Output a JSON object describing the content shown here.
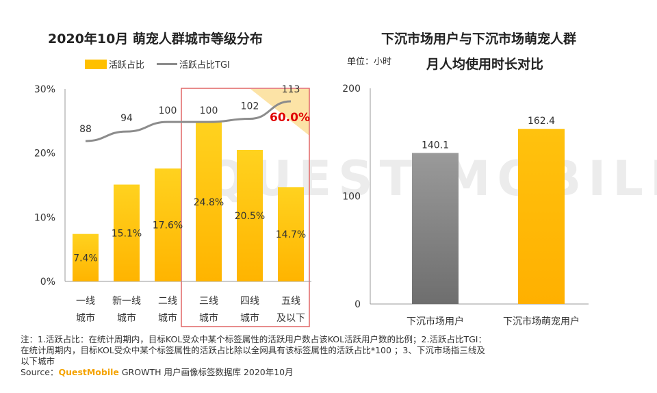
{
  "left_chart": {
    "title": "2020年10月 萌宠人群城市等级分布",
    "legend_bar": "活跃占比",
    "legend_line": "活跃占比TGI"
  },
  "right_chart": {
    "title_line1": "下沉市场用户与下沉市场萌宠人群",
    "title_line2": "月人均使用时长对比",
    "unit": "单位：小时"
  },
  "highlight_value": "60.0%",
  "watermark": "QUEST MOBILE",
  "notes": {
    "line1": "注：1.活跃占比：在统计周期内，目标KOL受众中某个标签属性的活跃用户数占该KOL活跃用户数的比例；2.活跃占比TGI：",
    "line2": "在统计周期内，目标KOL受众中某个标签属性的活跃占比除以全网具有该标签属性的活跃占比*100 ；3、下沉市场指三线及",
    "line3": "以下城市",
    "source_prefix": "Source：",
    "source_brand": "QuestMobile",
    "source_rest": " GROWTH 用户画像标签数据库 2020年10月"
  },
  "colors": {
    "bar_yellow": "#ffc000",
    "bar_gray": "#8c8c8c",
    "tgi_line": "#8c8c8c",
    "highlight_box": "#e06666",
    "highlight_text": "#e00000"
  },
  "chart_data": [
    {
      "type": "bar",
      "categories": [
        [
          "一线",
          "城市"
        ],
        [
          "新一线",
          "城市"
        ],
        [
          "二线",
          "城市"
        ],
        [
          "三线",
          "城市"
        ],
        [
          "四线",
          "城市"
        ],
        [
          "五线",
          "及以下"
        ]
      ],
      "series": [
        {
          "name": "活跃占比",
          "type": "bar",
          "values": [
            7.4,
            15.1,
            17.6,
            24.8,
            20.5,
            14.7
          ],
          "labels": [
            "7.4%",
            "15.1%",
            "17.6%",
            "24.8%",
            "20.5%",
            "14.7%"
          ]
        },
        {
          "name": "活跃占比TGI",
          "type": "line",
          "values": [
            88,
            94,
            100,
            100,
            102,
            113
          ]
        }
      ],
      "yticks": [
        "0%",
        "10%",
        "20%",
        "30%"
      ],
      "ylim": [
        0,
        30
      ],
      "highlighted_categories": [
        "三线",
        "四线",
        "五线"
      ]
    },
    {
      "type": "bar",
      "categories": [
        "下沉市场用户",
        "下沉市场萌宠用户"
      ],
      "values": [
        140.1,
        162.4
      ],
      "labels": [
        "140.1",
        "162.4"
      ],
      "yticks": [
        "0",
        "100",
        "200"
      ],
      "ylim": [
        0,
        200
      ]
    }
  ]
}
